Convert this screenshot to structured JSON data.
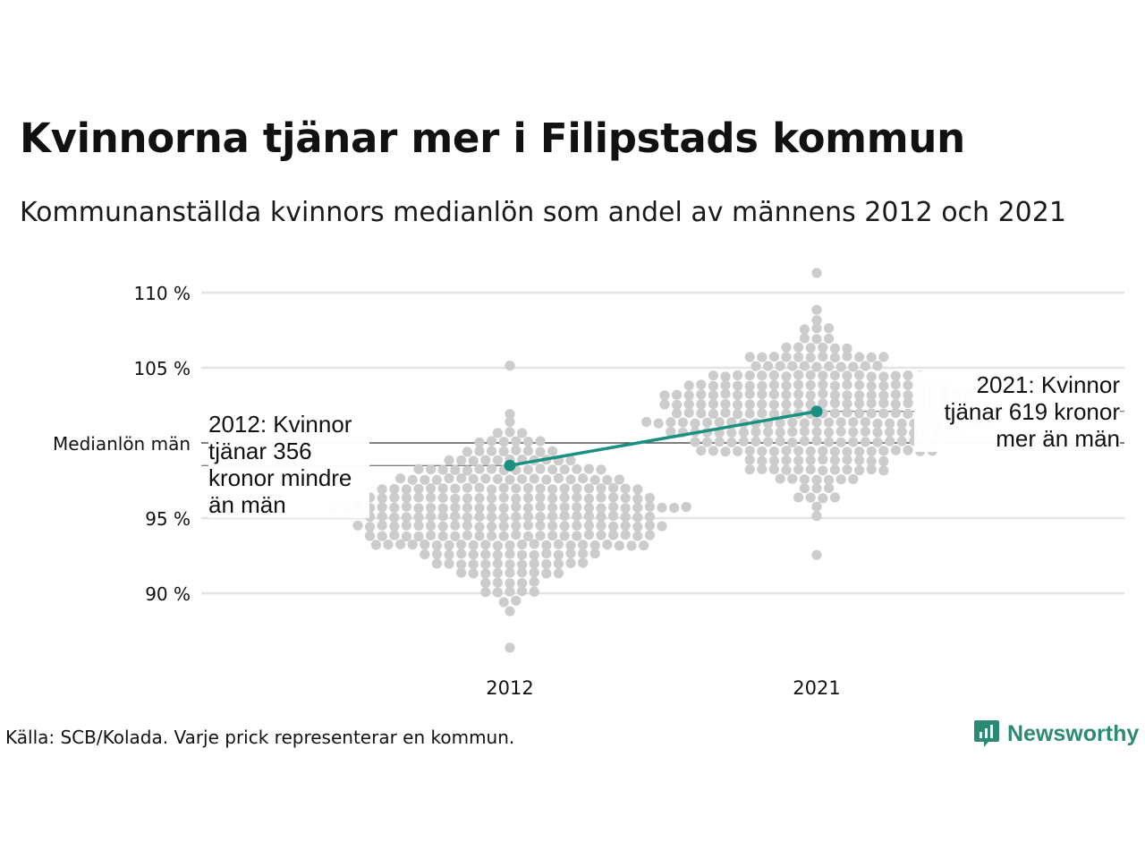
{
  "header": {
    "title": "Kvinnorna tjänar mer i Filipstads kommun",
    "subtitle": "Kommunanställda kvinnors medianlön som andel av männens 2012 och 2021"
  },
  "footer": {
    "source": "Källa: SCB/Kolada. Varje prick representerar en kommun.",
    "brand": "Newsworthy"
  },
  "annotations": {
    "left": [
      "2012: Kvinnor",
      "tjänar 356",
      "kronor mindre",
      "än män"
    ],
    "right": [
      "2021: Kvinnor",
      "tjänar 619 kronor",
      "mer än män"
    ]
  },
  "colors": {
    "highlight": "#1a9080",
    "dots": "#cccccc",
    "grid": "#e3e3e3",
    "reference": "#333333",
    "brand": "#2c8a74"
  },
  "chart_data": {
    "type": "scatter",
    "subtype": "beeswarm",
    "categories": [
      "2012",
      "2021"
    ],
    "y_ticks": [
      {
        "value": 110,
        "label": "110 %"
      },
      {
        "value": 105,
        "label": "105 %"
      },
      {
        "value": 100,
        "label": "Medianlön män"
      },
      {
        "value": 95,
        "label": "95 %"
      },
      {
        "value": 90,
        "label": "90 %"
      }
    ],
    "ylim": [
      86,
      112
    ],
    "reference_value": 100,
    "highlight_series": {
      "values": [
        98.5,
        102.1
      ]
    },
    "swarm_distribution": [
      {
        "category": "2012",
        "n": 290,
        "mean": 95.3,
        "sd": 2.6,
        "min": 86.6,
        "max": 105.1
      },
      {
        "category": "2021",
        "n": 290,
        "mean": 101.9,
        "sd": 2.6,
        "min": 92.6,
        "max": 111.2
      }
    ]
  }
}
